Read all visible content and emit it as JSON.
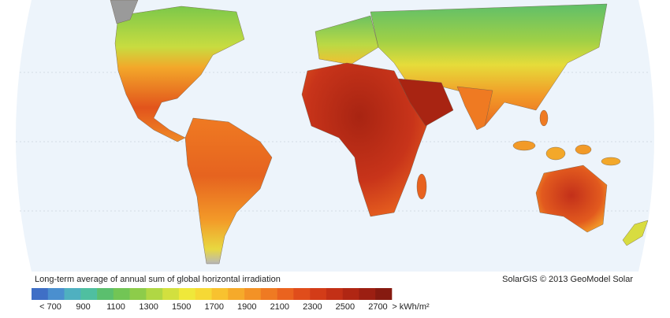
{
  "legend": {
    "title": "Long-term average of annual sum of global horizontal irradiation",
    "labels": [
      "< 700",
      "900",
      "1100",
      "1300",
      "1500",
      "1700",
      "1900",
      "2100",
      "2300",
      "2500",
      "2700",
      "> kWh/m²"
    ],
    "colors": [
      "#3f6fc6",
      "#4a8fcf",
      "#4fb0c0",
      "#4fbfa0",
      "#5bbf6e",
      "#72c555",
      "#8dcc4a",
      "#b0d744",
      "#d2e03f",
      "#efe83a",
      "#f6d935",
      "#f8c22f",
      "#f6aa2a",
      "#f39226",
      "#ef7a22",
      "#ea631f",
      "#e04d1b",
      "#d33c18",
      "#c33016",
      "#b02613",
      "#9c1f12",
      "#861a10"
    ]
  },
  "credit": "SolarGIS © 2013 GeoModel Solar"
}
